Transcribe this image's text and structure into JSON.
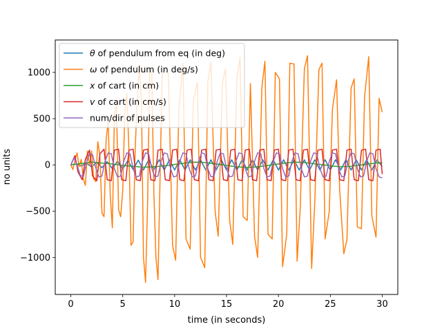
{
  "chart_data": {
    "type": "line",
    "xlabel": "time (in seconds)",
    "ylabel": "no units",
    "xlim": [
      -1.5,
      31.5
    ],
    "ylim": [
      -1400,
      1350
    ],
    "xticks": [
      0,
      5,
      10,
      15,
      20,
      25,
      30
    ],
    "yticks": [
      -1000,
      -500,
      0,
      500,
      1000
    ],
    "ytick_labels": [
      "−1000",
      "−500",
      "0",
      "500",
      "1000"
    ],
    "grid": false,
    "legend_position": "top-left",
    "colors": [
      "#1f77b4",
      "#ff7f0e",
      "#2ca02c",
      "#d62728",
      "#9467bd"
    ],
    "legend": [
      {
        "sym": "θ",
        "text": " of pendulum from eq (in deg)"
      },
      {
        "sym": "ω",
        "text": " of pendulum (in deg/s)"
      },
      {
        "sym": "x",
        "text": " of cart (in cm)"
      },
      {
        "sym": "v",
        "text": " of cart  (in cm/s)"
      },
      {
        "sym": "",
        "text": "num/dir of pulses"
      }
    ],
    "series": [
      {
        "name": "θ of pendulum from eq (in deg)",
        "x": [
          0,
          0.5,
          1,
          1.5,
          2,
          2.5,
          3,
          3.5,
          4,
          4.5,
          5,
          5.5,
          6,
          6.5,
          7,
          7.5,
          8,
          8.5,
          9,
          9.5,
          10,
          10.5,
          11,
          11.5,
          12,
          12.5,
          13,
          13.5,
          14,
          14.5,
          15,
          15.5,
          16,
          16.5,
          17,
          17.5,
          18,
          18.5,
          19,
          19.5,
          20,
          20.5,
          21,
          21.5,
          22,
          22.5,
          23,
          23.5,
          24,
          24.5,
          25,
          25.5,
          26,
          26.5,
          27,
          27.5,
          28,
          28.5,
          29,
          29.5,
          30
        ],
        "y": [
          0,
          10,
          -12,
          18,
          -22,
          28,
          -30,
          35,
          -40,
          42,
          -45,
          48,
          -50,
          52,
          -55,
          55,
          -55,
          55,
          -55,
          55,
          -55,
          55,
          -55,
          55,
          -55,
          55,
          -55,
          55,
          -55,
          55,
          -55,
          55,
          -55,
          55,
          -55,
          55,
          -55,
          55,
          -55,
          55,
          -55,
          55,
          -55,
          55,
          -55,
          55,
          -55,
          55,
          -55,
          55,
          -55,
          55,
          -55,
          55,
          -55,
          55,
          -55,
          55,
          -55,
          55,
          -20
        ]
      },
      {
        "name": "ω of pendulum (in deg/s)",
        "x": [
          0,
          0.2,
          0.4,
          0.6,
          0.8,
          1.0,
          1.2,
          1.4,
          1.6,
          1.8,
          2.0,
          2.2,
          2.4,
          2.6,
          2.8,
          3.0,
          3.2,
          3.4,
          3.6,
          3.8,
          4.0,
          4.2,
          4.4,
          4.6,
          4.8,
          5.0,
          5.2,
          5.4,
          5.6,
          5.8,
          6.0,
          6.2,
          6.4,
          6.6,
          6.8,
          7.0,
          7.2,
          7.4,
          7.6,
          7.8,
          8.0,
          8.2,
          8.4,
          8.6,
          8.8,
          9.0,
          9.4,
          9.8,
          10.1,
          10.4,
          10.8,
          11.1,
          11.5,
          11.8,
          12.2,
          12.5,
          12.9,
          13.2,
          13.5,
          13.9,
          14.2,
          14.6,
          14.9,
          15.3,
          15.6,
          16.0,
          16.3,
          16.6,
          17.0,
          17.3,
          17.7,
          18.0,
          18.4,
          18.7,
          19.0,
          19.4,
          19.7,
          20.1,
          20.4,
          20.8,
          21.1,
          21.5,
          21.8,
          22.1,
          22.5,
          22.8,
          23.2,
          23.5,
          23.9,
          24.2,
          24.5,
          24.9,
          25.2,
          25.6,
          25.9,
          26.3,
          26.6,
          27.0,
          27.3,
          27.6,
          28.0,
          28.3,
          28.7,
          29.0,
          29.4,
          29.7,
          30.0
        ],
        "y": [
          0,
          -50,
          50,
          130,
          -20,
          60,
          -150,
          -220,
          150,
          0,
          150,
          -150,
          -180,
          250,
          100,
          -520,
          -560,
          270,
          480,
          -330,
          -680,
          540,
          650,
          -480,
          -560,
          -280,
          570,
          770,
          150,
          -870,
          -830,
          170,
          700,
          1080,
          700,
          -1000,
          -1270,
          -400,
          1050,
          990,
          -300,
          -1000,
          -1240,
          -120,
          980,
          1020,
          990,
          -870,
          -1030,
          580,
          1100,
          -800,
          -910,
          700,
          890,
          -1000,
          -1110,
          900,
          1110,
          -500,
          -770,
          880,
          1040,
          -600,
          -860,
          930,
          1160,
          -560,
          -600,
          880,
          -770,
          -1000,
          830,
          1120,
          -750,
          -800,
          1000,
          930,
          -1100,
          -750,
          1100,
          1090,
          -1040,
          -470,
          1040,
          1180,
          -1120,
          -410,
          1030,
          1100,
          -800,
          -500,
          600,
          920,
          -270,
          -960,
          -810,
          830,
          930,
          -670,
          -690,
          740,
          1170,
          -550,
          -780,
          720,
          570
        ]
      },
      {
        "name": "x of cart (in cm)",
        "x": [
          0,
          1,
          2,
          3,
          4,
          5,
          6,
          7,
          8,
          9,
          10,
          11,
          12,
          13,
          14,
          15,
          16,
          17,
          18,
          19,
          20,
          21,
          22,
          23,
          24,
          25,
          26,
          27,
          28,
          29,
          30
        ],
        "y": [
          0,
          15,
          30,
          20,
          10,
          -5,
          -15,
          -25,
          -20,
          -10,
          5,
          20,
          30,
          25,
          10,
          -5,
          -20,
          -28,
          -20,
          -5,
          10,
          25,
          30,
          20,
          5,
          -10,
          -20,
          -15,
          0,
          15,
          25
        ]
      },
      {
        "name": "v of cart  (in cm/s)",
        "x": [
          0,
          0.4,
          0.7,
          1.1,
          1.4,
          1.8,
          2.1,
          2.5,
          2.8,
          3.2,
          3.5,
          3.9,
          4.2,
          4.6,
          4.9,
          5.3,
          5.6,
          6.0,
          6.3,
          6.7,
          7.0,
          7.4,
          7.7,
          8.1,
          8.4,
          8.8,
          9.1,
          9.5,
          9.8,
          10.2,
          10.5,
          10.9,
          11.2,
          11.6,
          11.9,
          12.3,
          12.6,
          13.0,
          13.3,
          13.7,
          14.0,
          14.4,
          14.7,
          15.1,
          15.4,
          15.8,
          16.1,
          16.5,
          16.8,
          17.2,
          17.5,
          17.9,
          18.2,
          18.6,
          18.9,
          19.3,
          19.6,
          20.0,
          20.3,
          20.7,
          21.0,
          21.4,
          21.7,
          22.1,
          22.4,
          22.8,
          23.1,
          23.5,
          23.8,
          24.2,
          24.5,
          24.9,
          25.2,
          25.6,
          25.9,
          26.3,
          26.6,
          27.0,
          27.3,
          27.7,
          28.0,
          28.4,
          28.7,
          29.1,
          29.4,
          29.8,
          30.0
        ],
        "y": [
          0,
          100,
          -80,
          -160,
          60,
          160,
          -120,
          -170,
          120,
          170,
          -160,
          -170,
          160,
          170,
          -160,
          -170,
          160,
          170,
          -160,
          -170,
          160,
          170,
          -160,
          -170,
          160,
          170,
          -160,
          -170,
          160,
          170,
          -160,
          -170,
          160,
          170,
          -160,
          -170,
          160,
          170,
          -160,
          -170,
          160,
          170,
          -160,
          -170,
          160,
          170,
          -160,
          -170,
          160,
          170,
          -160,
          -170,
          160,
          170,
          -160,
          -170,
          160,
          170,
          -160,
          -170,
          160,
          170,
          -160,
          -170,
          160,
          170,
          -160,
          -170,
          160,
          170,
          -160,
          -170,
          160,
          170,
          -160,
          -170,
          160,
          170,
          -160,
          -170,
          160,
          170,
          -160,
          -170,
          160,
          170,
          -100
        ]
      },
      {
        "name": "num/dir of pulses",
        "x": [
          0,
          0.3,
          0.6,
          0.9,
          1.2,
          1.5,
          1.8,
          2.1,
          2.4,
          2.7,
          3.0,
          3.3,
          3.6,
          3.9,
          4.2,
          4.5,
          4.8,
          5.1,
          5.4,
          5.7,
          6.0,
          6.3,
          6.6,
          6.9,
          7.2,
          7.5,
          7.8,
          8.1,
          8.4,
          8.7,
          9.0,
          9.3,
          9.6,
          9.9,
          10.2,
          10.5,
          10.8,
          11.1,
          11.4,
          11.7,
          12.0,
          12.3,
          12.6,
          12.9,
          13.2,
          13.5,
          13.8,
          14.1,
          14.4,
          14.7,
          15.0,
          15.3,
          15.6,
          15.9,
          16.2,
          16.5,
          16.8,
          17.1,
          17.4,
          17.7,
          18.0,
          18.3,
          18.6,
          18.9,
          19.2,
          19.5,
          19.8,
          20.1,
          20.4,
          20.7,
          21.0,
          21.3,
          21.6,
          21.9,
          22.2,
          22.5,
          22.8,
          23.1,
          23.4,
          23.7,
          24.0,
          24.3,
          24.6,
          24.9,
          25.2,
          25.5,
          25.8,
          26.1,
          26.4,
          26.7,
          27.0,
          27.3,
          27.6,
          27.9,
          28.2,
          28.5,
          28.8,
          29.1,
          29.4,
          29.7,
          30.0
        ],
        "y": [
          0,
          80,
          0,
          -110,
          -130,
          20,
          120,
          110,
          -30,
          -130,
          -120,
          40,
          130,
          120,
          -40,
          -130,
          -120,
          40,
          130,
          120,
          -40,
          -130,
          -120,
          40,
          130,
          120,
          -40,
          -130,
          -120,
          40,
          130,
          120,
          -40,
          -130,
          -120,
          40,
          130,
          120,
          -40,
          -130,
          -120,
          40,
          130,
          120,
          -40,
          -130,
          -120,
          40,
          130,
          120,
          -40,
          -130,
          -120,
          40,
          130,
          120,
          -40,
          -130,
          -120,
          40,
          130,
          120,
          -40,
          -130,
          -120,
          40,
          130,
          120,
          -40,
          -130,
          -120,
          40,
          130,
          120,
          -40,
          -130,
          -120,
          40,
          130,
          120,
          -40,
          -130,
          -120,
          40,
          130,
          120,
          -40,
          -130,
          -120,
          40,
          130,
          120,
          -40,
          -130,
          -120,
          40,
          130,
          120,
          -40,
          -130,
          -140
        ]
      }
    ]
  }
}
